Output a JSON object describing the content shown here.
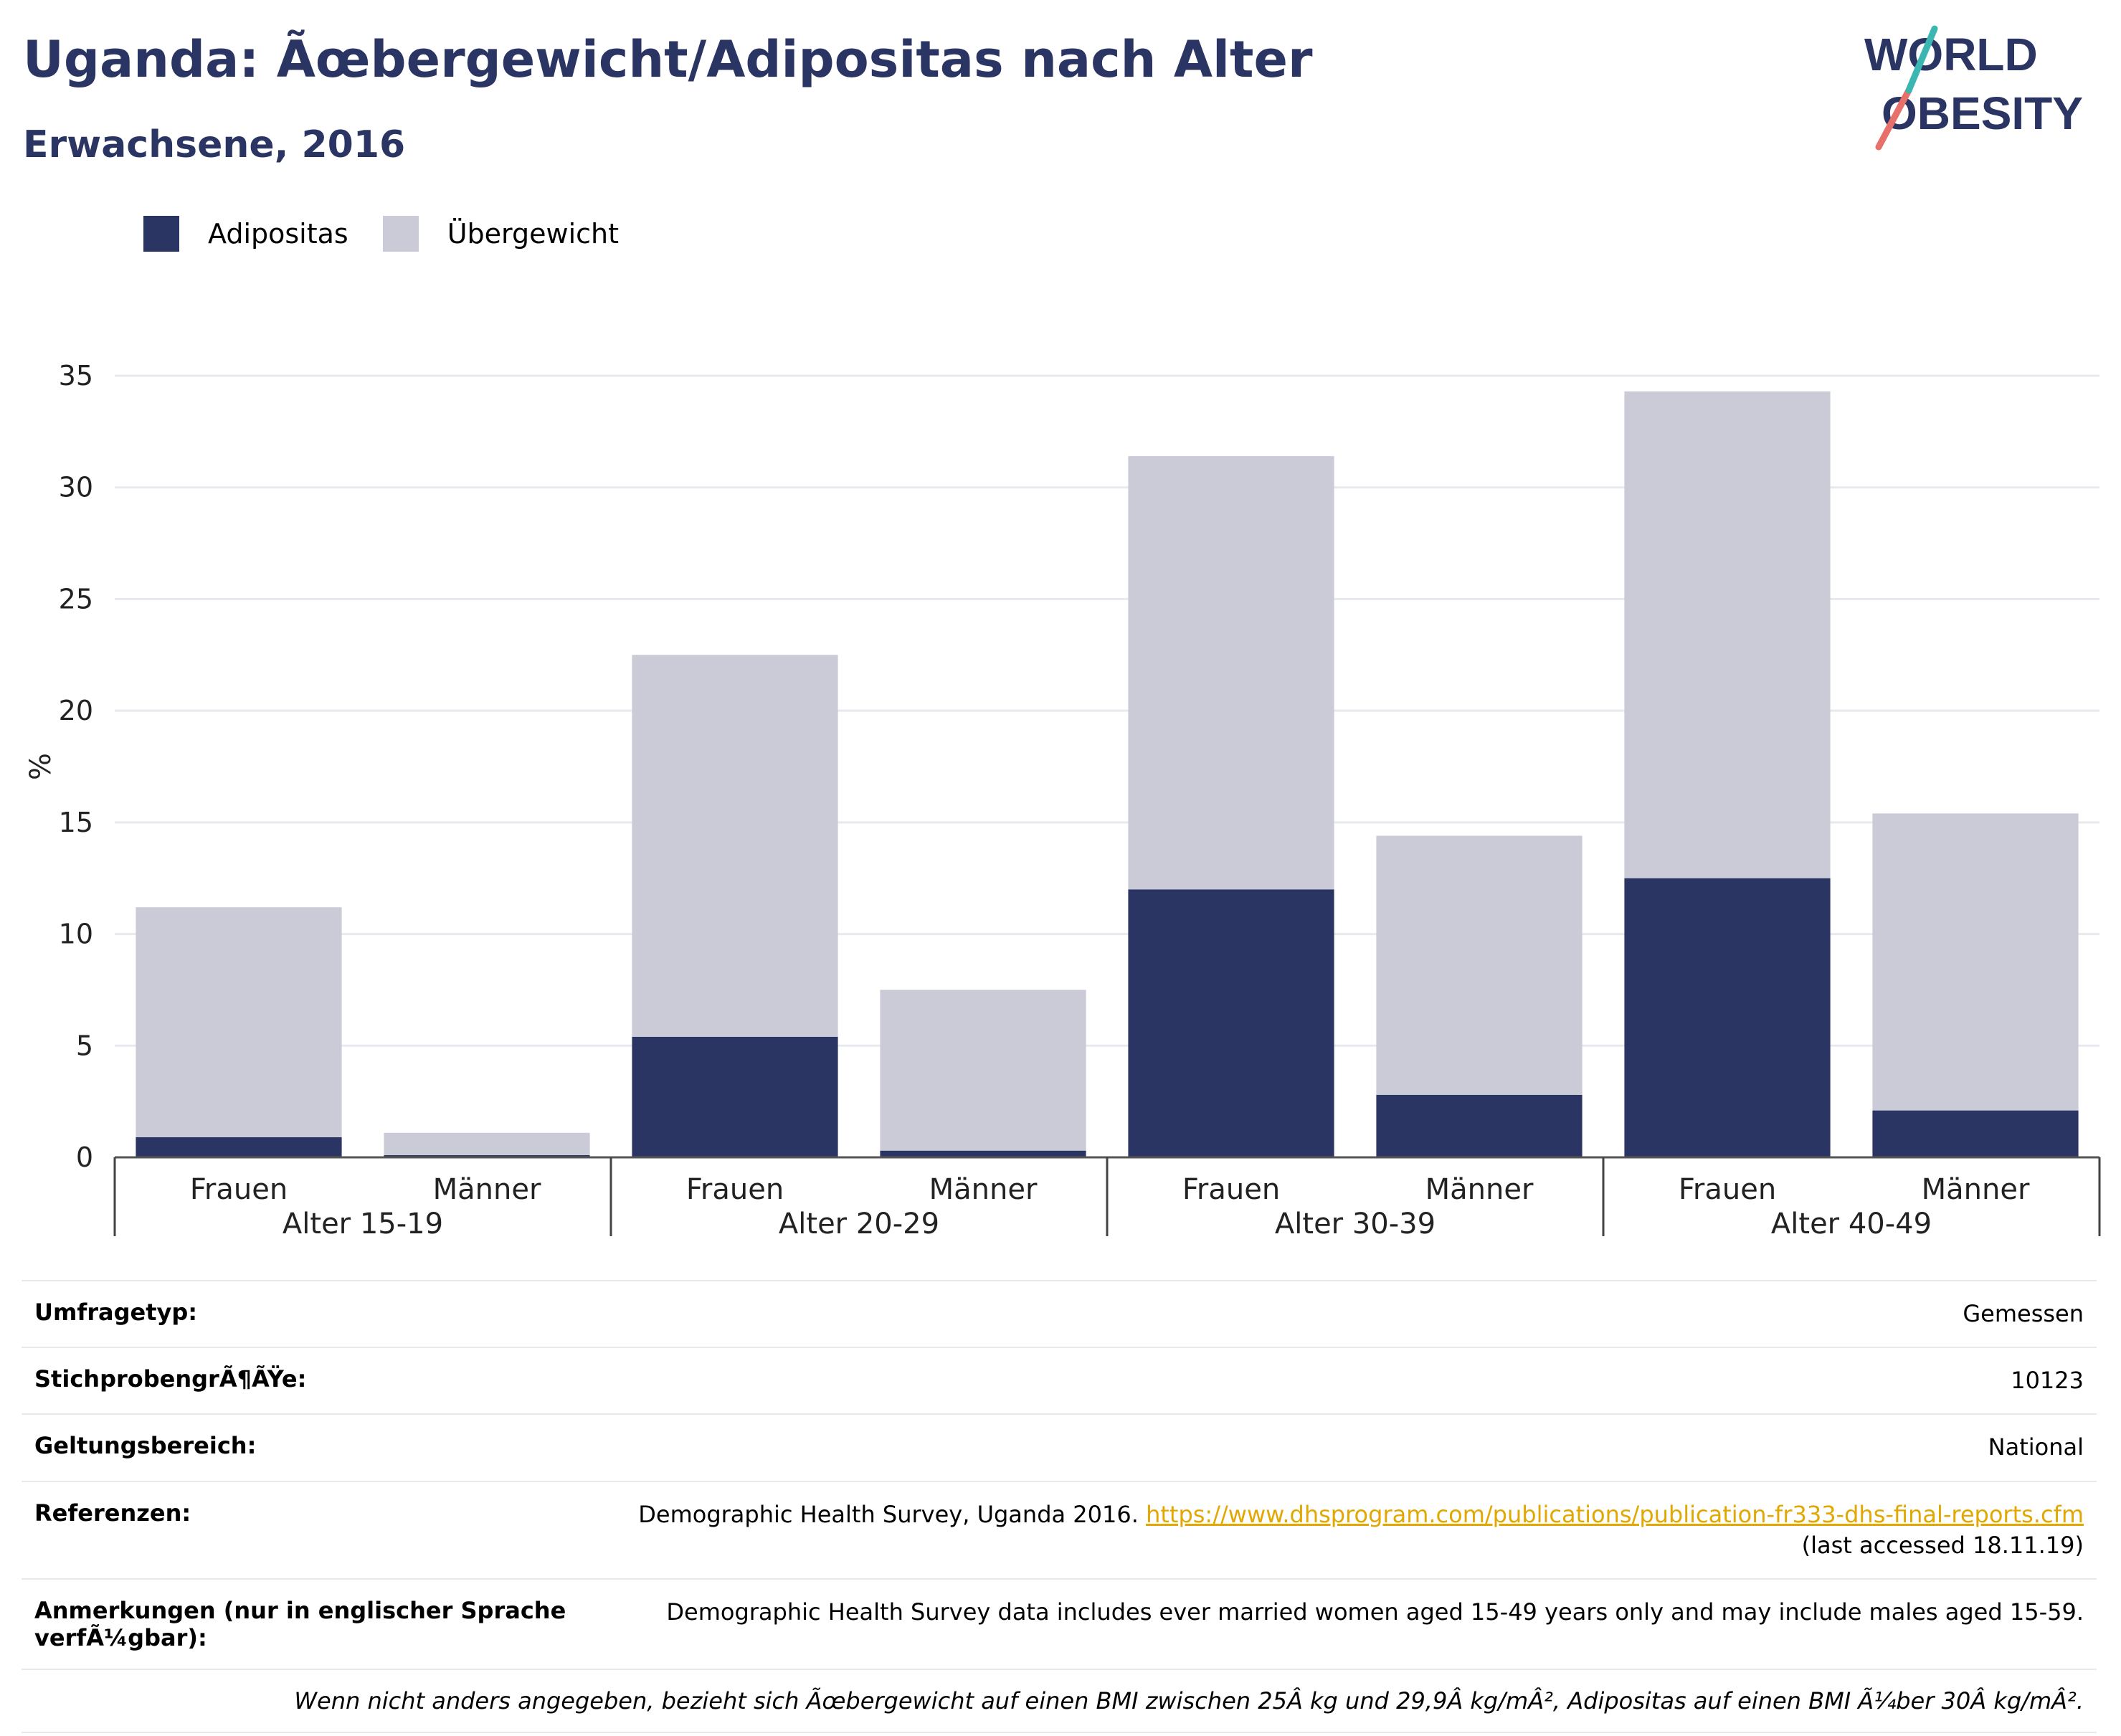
{
  "header": {
    "title": "Uganda: Ãœbergewicht/Adipositas nach Alter",
    "subtitle": "Erwachsene, 2016",
    "logo_line1": "WORLD",
    "logo_line2": "OBESITY"
  },
  "legend": [
    {
      "label": "Adipositas",
      "color": "#2b3563"
    },
    {
      "label": "Übergewicht",
      "color": "#cacbd7"
    }
  ],
  "chart_data": {
    "type": "bar",
    "stacked": true,
    "ylabel": "%",
    "ylim": [
      0,
      35
    ],
    "yticks": [
      0,
      5,
      10,
      15,
      20,
      25,
      30,
      35
    ],
    "grid": true,
    "legend_position": "top-left",
    "groups": [
      "Alter 15-19",
      "Alter 20-29",
      "Alter 30-39",
      "Alter 40-49"
    ],
    "categories": [
      "Frauen",
      "Männer",
      "Frauen",
      "Männer",
      "Frauen",
      "Männer",
      "Frauen",
      "Männer"
    ],
    "series": [
      {
        "name": "Adipositas",
        "color": "#2b3563",
        "values": [
          0.9,
          0.1,
          5.4,
          0.3,
          12.0,
          2.8,
          12.5,
          2.1
        ]
      },
      {
        "name": "Übergewicht",
        "color": "#cacbd7",
        "values": [
          10.3,
          1.0,
          17.1,
          7.2,
          19.4,
          11.6,
          21.8,
          13.3
        ]
      }
    ]
  },
  "meta": {
    "survey_type_label": "Umfragetyp:",
    "survey_type_value": "Gemessen",
    "sample_size_label": "StichprobengrÃ¶ÃŸe:",
    "sample_size_value": "10123",
    "scope_label": "Geltungsbereich:",
    "scope_value": "National",
    "references_label": "Referenzen:",
    "references_prefix": "Demographic Health Survey, Uganda 2016.",
    "references_link": "https://www.dhsprogram.com/publications/publication-fr333-dhs-final-reports.cfm",
    "references_suffix": "(last accessed 18.11.19)",
    "notes_label": "Anmerkungen (nur in englischer Sprache verfÃ¼gbar):",
    "notes_value": "Demographic Health Survey data includes ever married women aged 15-49 years only and may include males aged 15-59.",
    "footnote": "Wenn nicht anders angegeben, bezieht sich Ãœbergewicht auf einen BMI zwischen 25Â kg und 29,9Â kg/mÂ², Adipositas auf einen BMI Ã¼ber 30Â kg/mÂ²."
  }
}
